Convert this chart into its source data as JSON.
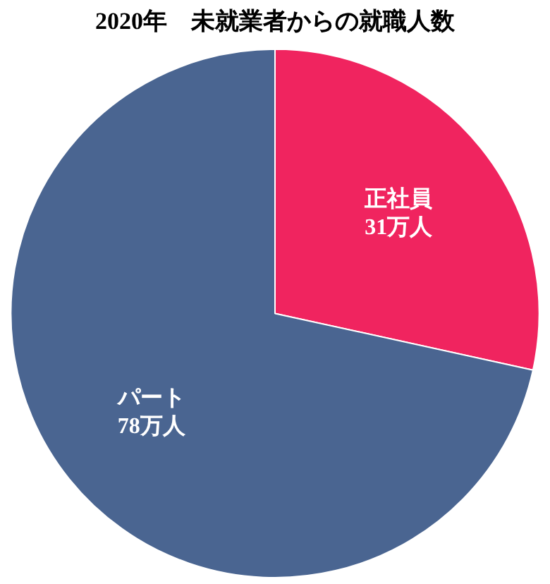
{
  "chart_data": {
    "type": "pie",
    "title": "2020年　未就業者からの就職人数",
    "categories": [
      "正社員",
      "パート"
    ],
    "values": [
      31,
      78
    ],
    "colors": [
      "#f0245f",
      "#4a6591"
    ],
    "value_labels": [
      "31万人",
      "78万人"
    ],
    "legend": false
  }
}
